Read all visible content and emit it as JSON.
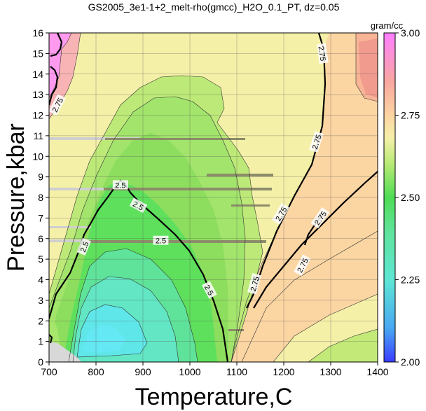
{
  "chart_data": {
    "type": "contour",
    "title": "GS2005_3e1-1+2_melt-rho(gmcc)_H2O_0.1_PT, dz=0.05",
    "xlabel": "Temperature,C",
    "ylabel": "Pressure,kbar",
    "xlim": [
      700,
      1400
    ],
    "ylim": [
      0,
      16
    ],
    "xticks": [
      700,
      800,
      900,
      1000,
      1100,
      1200,
      1300,
      1400
    ],
    "yticks": [
      0,
      1,
      2,
      3,
      4,
      5,
      6,
      7,
      8,
      9,
      10,
      11,
      12,
      13,
      14,
      15,
      16
    ],
    "grid": true,
    "colorbar": {
      "label": "gram/cc",
      "range": [
        2.0,
        3.0
      ],
      "ticks": [
        "2.00",
        "2.25",
        "2.50",
        "2.75",
        "3.00"
      ],
      "stops": [
        {
          "v": 2.0,
          "color": "#3a3cff"
        },
        {
          "v": 2.1,
          "color": "#48a6f2"
        },
        {
          "v": 2.25,
          "color": "#5ee6d4"
        },
        {
          "v": 2.4,
          "color": "#5fe39a"
        },
        {
          "v": 2.5,
          "color": "#4fdc54"
        },
        {
          "v": 2.6,
          "color": "#b6ea74"
        },
        {
          "v": 2.68,
          "color": "#f5f0a8"
        },
        {
          "v": 2.75,
          "color": "#fbd5a2"
        },
        {
          "v": 2.85,
          "color": "#f8a8a0"
        },
        {
          "v": 3.0,
          "color": "#ff7fff"
        }
      ]
    },
    "contour_labels": [
      {
        "text": "2.75",
        "t": 1282,
        "p": 15.0,
        "angle": 82
      },
      {
        "text": "2.75",
        "t": 718,
        "p": 12.5,
        "angle": -62
      },
      {
        "text": "2.75",
        "t": 1270,
        "p": 10.7,
        "angle": -72
      },
      {
        "text": "2.75",
        "t": 1194,
        "p": 7.2,
        "angle": -60
      },
      {
        "text": "2.75",
        "t": 1278,
        "p": 7.0,
        "angle": -55
      },
      {
        "text": "2.75",
        "t": 1240,
        "p": 4.7,
        "angle": -62
      },
      {
        "text": "2.75",
        "t": 1138,
        "p": 3.8,
        "angle": -75
      },
      {
        "text": "2.5",
        "t": 852,
        "p": 8.6,
        "angle": 0
      },
      {
        "text": "2.5",
        "t": 890,
        "p": 7.6,
        "angle": 28
      },
      {
        "text": "2.5",
        "t": 938,
        "p": 5.9,
        "angle": 0
      },
      {
        "text": "2.5",
        "t": 775,
        "p": 5.6,
        "angle": -68
      },
      {
        "text": "2.5",
        "t": 1041,
        "p": 3.5,
        "angle": 62
      }
    ]
  }
}
